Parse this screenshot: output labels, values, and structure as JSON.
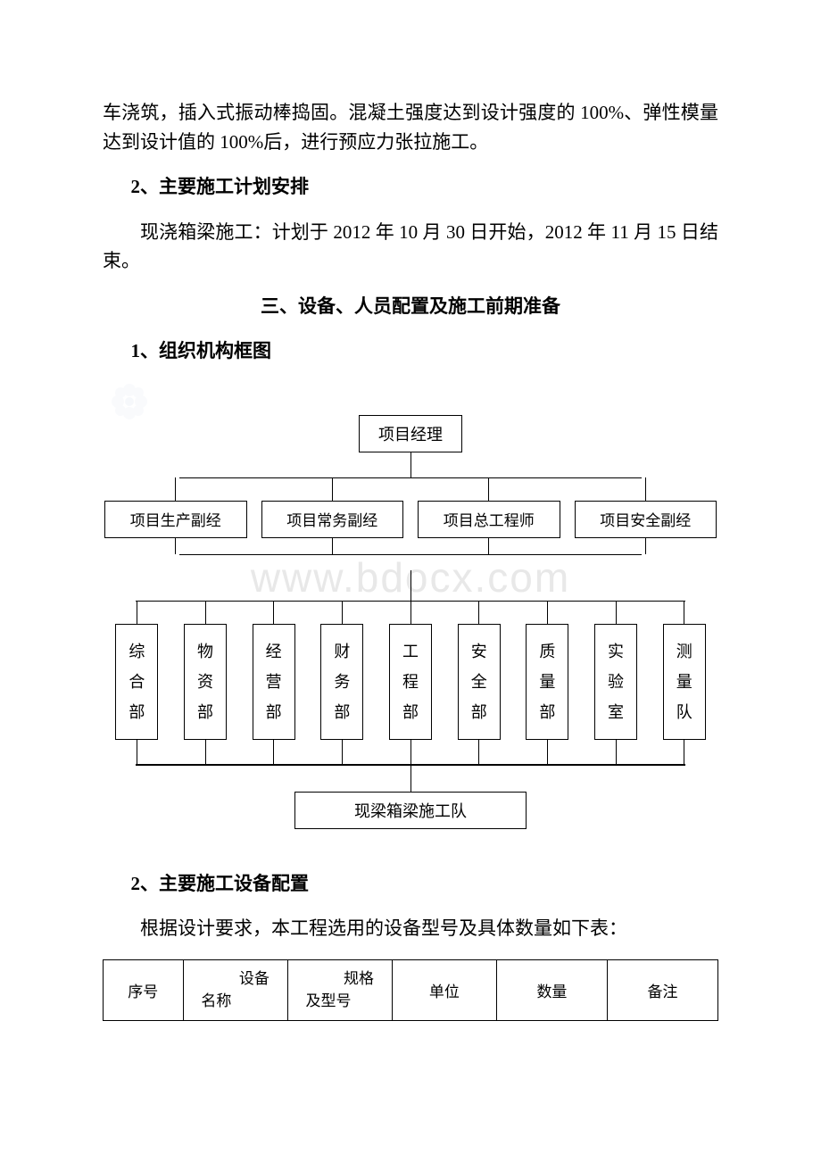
{
  "paragraphs": {
    "p1": "车浇筑，插入式振动棒捣固。混凝土强度达到设计强度的 100%、弹性模量达到设计值的 100%后，进行预应力张拉施工。",
    "h2": "2、主要施工计划安排",
    "p2": "现浇箱梁施工：计划于 2012 年 10 月 30 日开始，2012 年 11 月 15 日结束。",
    "section3_title": "三、设备、人员配置及施工前期准备",
    "h3_1": "1、组织机构框图",
    "h3_2": "2、主要施工设备配置",
    "p3": "根据设计要求，本工程选用的设备型号及具体数量如下表："
  },
  "org_chart": {
    "root": "项目经理",
    "tier2": [
      "项目生产副经",
      "项目常务副经",
      "项目总工程师",
      "项目安全副经"
    ],
    "tier3": [
      "综合部",
      "物资部",
      "经营部",
      "财务部",
      "工程部",
      "安全部",
      "质量部",
      "实验室",
      "测量队"
    ],
    "tier4": "现梁箱梁施工队"
  },
  "equip_table": {
    "headers": {
      "seq": "序号",
      "name_l1": "设备",
      "name_l2": "名称",
      "model_l1": "规格",
      "model_l2": "及型号",
      "unit": "单位",
      "qty": "数量",
      "remark": "备注"
    }
  },
  "watermark_text": "www.bdocx.com",
  "colors": {
    "text": "#000000",
    "border": "#000000",
    "background": "#ffffff",
    "watermark": "#e8e8e8",
    "flower": "#d8e2f0"
  }
}
